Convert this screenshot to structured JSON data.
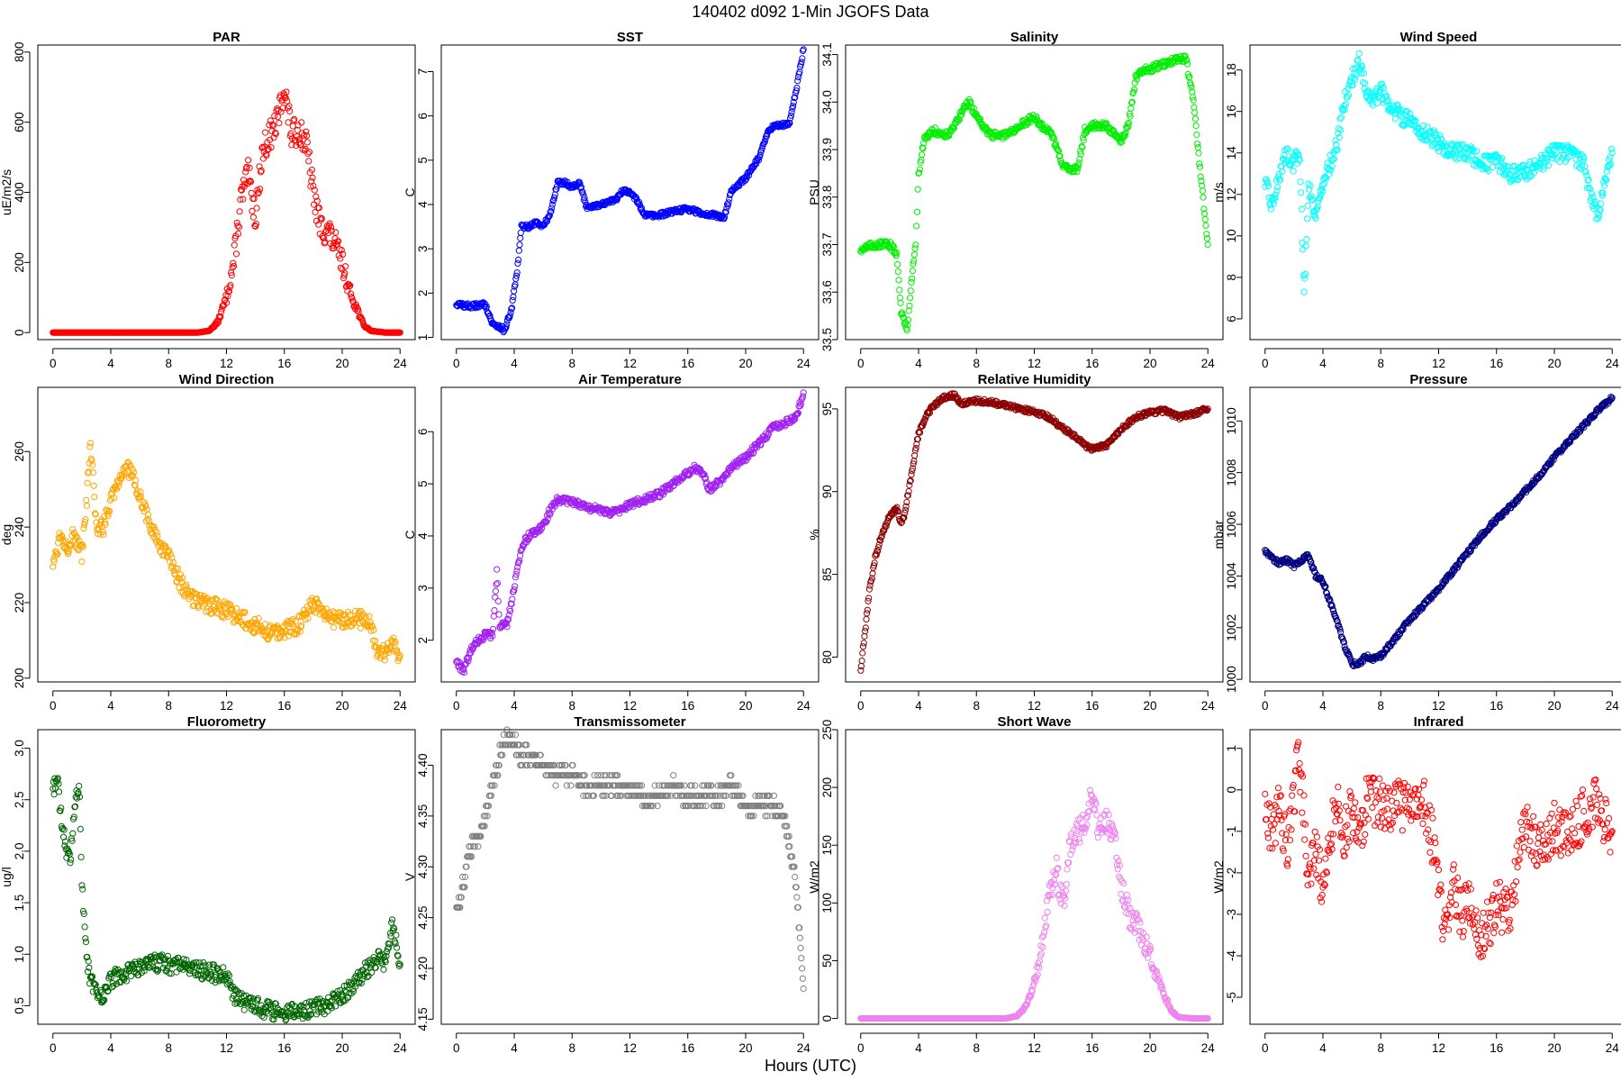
{
  "figure": {
    "title": "140402    d092    1-Min   JGOFS Data",
    "xlabel": "Hours (UTC)"
  },
  "chart_data": [
    {
      "type": "scatter",
      "title": "PAR",
      "ylabel": "uE/m2/s",
      "color": "#ff0000",
      "xlim": [
        0,
        24
      ],
      "ylim": [
        -20,
        820
      ],
      "xticks": [
        0,
        4,
        8,
        12,
        16,
        20,
        24
      ],
      "yticks": [
        0,
        200,
        400,
        600,
        800
      ],
      "x": [
        0,
        2,
        4,
        6,
        8,
        10,
        10.8,
        11.4,
        12,
        12.5,
        13,
        13.5,
        14,
        14.5,
        15,
        15.5,
        16,
        16.5,
        17,
        17.5,
        18,
        18.5,
        19,
        19.5,
        20,
        20.5,
        21,
        21.5,
        22,
        23,
        24
      ],
      "y": [
        0,
        0,
        0,
        0,
        0,
        0,
        5,
        30,
        100,
        200,
        380,
        450,
        330,
        520,
        560,
        600,
        700,
        560,
        580,
        540,
        400,
        300,
        290,
        250,
        200,
        120,
        70,
        20,
        5,
        0,
        0
      ]
    },
    {
      "type": "scatter",
      "title": "SST",
      "ylabel": "C",
      "color": "#0000ff",
      "xlim": [
        0,
        24
      ],
      "ylim": [
        0.95,
        7.6
      ],
      "xticks": [
        0,
        4,
        8,
        12,
        16,
        20,
        24
      ],
      "yticks": [
        1,
        2,
        3,
        4,
        5,
        6,
        7
      ],
      "x": [
        0,
        1,
        2,
        2.5,
        3,
        3.3,
        3.8,
        4.2,
        4.5,
        5,
        5.5,
        6,
        6.5,
        7,
        7.5,
        8,
        8.5,
        9,
        10,
        11,
        11.5,
        12,
        12.5,
        13,
        14,
        15,
        16,
        17,
        18,
        18.5,
        19,
        20,
        21,
        21.5,
        22,
        23,
        23.5,
        24
      ],
      "y": [
        1.75,
        1.7,
        1.75,
        1.3,
        1.25,
        1.15,
        1.6,
        2.5,
        3.5,
        3.5,
        3.6,
        3.5,
        3.8,
        4.5,
        4.5,
        4.4,
        4.5,
        3.95,
        4.0,
        4.1,
        4.3,
        4.3,
        4.1,
        3.75,
        3.75,
        3.85,
        3.9,
        3.8,
        3.75,
        3.7,
        4.3,
        4.6,
        5.1,
        5.6,
        5.8,
        5.8,
        6.6,
        7.5
      ]
    },
    {
      "type": "scatter",
      "title": "Salinity",
      "ylabel": "PSU",
      "color": "#00ee00",
      "xlim": [
        0,
        24
      ],
      "ylim": [
        33.5,
        34.12
      ],
      "xticks": [
        0,
        4,
        8,
        12,
        16,
        20,
        24
      ],
      "yticks": [
        33.5,
        33.6,
        33.7,
        33.8,
        33.9,
        34.0,
        34.1
      ],
      "x": [
        0,
        1,
        2,
        2.5,
        2.8,
        3.2,
        3.5,
        3.8,
        4.0,
        4.4,
        5,
        6,
        6.5,
        7,
        7.5,
        8,
        9,
        10,
        11,
        11.5,
        12,
        12.5,
        13,
        13.5,
        14,
        15,
        15.5,
        16,
        17,
        18,
        18.5,
        19,
        19.5,
        20,
        21,
        22,
        22.5,
        23,
        23.5,
        24
      ],
      "y": [
        33.69,
        33.7,
        33.7,
        33.68,
        33.56,
        33.52,
        33.62,
        33.7,
        33.85,
        33.92,
        33.94,
        33.93,
        33.95,
        33.98,
        34.0,
        33.97,
        33.93,
        33.93,
        33.95,
        33.96,
        33.97,
        33.95,
        33.94,
        33.91,
        33.86,
        33.86,
        33.94,
        33.95,
        33.95,
        33.92,
        33.95,
        34.05,
        34.07,
        34.07,
        34.08,
        34.09,
        34.09,
        34.0,
        33.85,
        33.7
      ]
    },
    {
      "type": "scatter",
      "title": "Wind Speed",
      "ylabel": "m/s",
      "color": "#00ffff",
      "xlim": [
        0,
        24
      ],
      "ylim": [
        5,
        19.2
      ],
      "xticks": [
        0,
        4,
        8,
        12,
        16,
        20,
        24
      ],
      "yticks": [
        6,
        8,
        10,
        12,
        14,
        16,
        18
      ],
      "x": [
        0,
        0.5,
        1,
        1.5,
        2,
        2.4,
        2.7,
        3,
        3.5,
        4,
        4.5,
        5,
        5.5,
        6,
        6.5,
        7,
        7.5,
        8,
        9,
        10,
        11,
        12,
        13,
        14,
        15,
        16,
        17,
        18,
        19,
        20,
        21,
        22,
        22.5,
        23,
        23.5,
        24
      ],
      "y": [
        12.5,
        11.5,
        13.0,
        14.0,
        13.5,
        14.0,
        7.0,
        12.5,
        11.0,
        12.5,
        13.5,
        14.5,
        16.5,
        17.5,
        18.5,
        17.0,
        16.5,
        17.0,
        16.0,
        15.5,
        15.0,
        14.5,
        14.0,
        14.0,
        13.5,
        13.5,
        13.0,
        13.0,
        13.5,
        14.0,
        14.0,
        13.5,
        12.0,
        11.0,
        12.5,
        14.0
      ]
    },
    {
      "type": "scatter",
      "title": "Wind Direction",
      "ylabel": "deg",
      "color": "#ffa500",
      "xlim": [
        0,
        24
      ],
      "ylim": [
        199,
        277
      ],
      "xticks": [
        0,
        4,
        8,
        12,
        16,
        20,
        24
      ],
      "yticks": [
        200,
        220,
        240,
        260
      ],
      "x": [
        0,
        0.5,
        1,
        1.5,
        2,
        2.3,
        2.6,
        3,
        3.5,
        4,
        4.5,
        5,
        5.5,
        6,
        6.5,
        7,
        7.5,
        8,
        9,
        10,
        11,
        12,
        13,
        14,
        15,
        16,
        17,
        18,
        19,
        20,
        21,
        22,
        22.5,
        23,
        23.5,
        24
      ],
      "y": [
        230,
        238,
        235,
        238,
        232,
        245,
        262,
        240,
        240,
        248,
        252,
        256,
        254,
        248,
        243,
        238,
        234,
        232,
        224,
        220,
        219,
        218,
        216,
        214,
        212,
        213,
        214,
        220,
        216,
        215,
        216,
        214,
        206,
        207,
        209,
        206
      ]
    },
    {
      "type": "scatter",
      "title": "Air Temperature",
      "ylabel": "C",
      "color": "#a020f0",
      "xlim": [
        0,
        24
      ],
      "ylim": [
        1.2,
        6.85
      ],
      "xticks": [
        0,
        4,
        8,
        12,
        16,
        20,
        24
      ],
      "yticks": [
        2,
        3,
        4,
        5,
        6
      ],
      "x": [
        0,
        0.5,
        1,
        1.5,
        2,
        2.5,
        2.8,
        3,
        3.5,
        4,
        4.5,
        5,
        5.5,
        6,
        6.5,
        7,
        8,
        9,
        10,
        10.5,
        11,
        12,
        13,
        14,
        15,
        16,
        16.5,
        17,
        17.5,
        18,
        18.5,
        19,
        20,
        21,
        22,
        23,
        23.5,
        24
      ],
      "y": [
        1.6,
        1.4,
        1.8,
        2.0,
        2.1,
        2.1,
        3.3,
        2.3,
        2.3,
        3.0,
        3.8,
        4.0,
        4.1,
        4.2,
        4.5,
        4.7,
        4.65,
        4.55,
        4.5,
        4.45,
        4.45,
        4.6,
        4.7,
        4.8,
        5.0,
        5.2,
        5.3,
        5.2,
        4.9,
        5.0,
        5.1,
        5.3,
        5.5,
        5.8,
        6.1,
        6.2,
        6.3,
        6.75
      ]
    },
    {
      "type": "scatter",
      "title": "Relative Humidity",
      "ylabel": "%",
      "color": "#8b0000",
      "xlim": [
        0,
        24
      ],
      "ylim": [
        78.5,
        96.3
      ],
      "xticks": [
        0,
        4,
        8,
        12,
        16,
        20,
        24
      ],
      "yticks": [
        80,
        85,
        90,
        95
      ],
      "x": [
        0,
        0.3,
        0.6,
        1,
        1.5,
        2,
        2.5,
        2.8,
        3,
        3.5,
        4,
        4.5,
        5,
        5.5,
        6,
        6.5,
        7,
        8,
        9,
        10,
        11,
        12,
        13,
        14,
        15,
        15.5,
        16,
        17,
        18,
        19,
        20,
        21,
        22,
        23,
        24
      ],
      "y": [
        79.2,
        81.5,
        84,
        86,
        87.5,
        88.5,
        89,
        88,
        88.5,
        91,
        93.5,
        94.5,
        95.2,
        95.5,
        95.8,
        95.8,
        95.3,
        95.5,
        95.4,
        95.2,
        95.0,
        94.8,
        94.5,
        93.8,
        93.2,
        92.8,
        92.6,
        92.8,
        93.8,
        94.5,
        94.8,
        94.9,
        94.5,
        94.7,
        95.0
      ]
    },
    {
      "type": "scatter",
      "title": "Pressure",
      "ylabel": "mbar",
      "color": "#000080",
      "xlim": [
        0,
        24
      ],
      "ylim": [
        999.9,
        1011.3
      ],
      "xticks": [
        0,
        4,
        8,
        12,
        16,
        20,
        24
      ],
      "yticks": [
        1000,
        1002,
        1004,
        1006,
        1008,
        1010
      ],
      "x": [
        0,
        0.5,
        1,
        1.5,
        2,
        2.5,
        3,
        3.5,
        4,
        4.5,
        5,
        5.5,
        6,
        6.5,
        7,
        7.5,
        8,
        9,
        10,
        11,
        12,
        13,
        14,
        15,
        16,
        17,
        18,
        19,
        20,
        21,
        22,
        23,
        24
      ],
      "y": [
        1005.0,
        1004.7,
        1004.5,
        1004.6,
        1004.4,
        1004.6,
        1004.8,
        1004.0,
        1003.8,
        1003.0,
        1002.2,
        1001.3,
        1000.6,
        1000.6,
        1000.9,
        1000.8,
        1000.9,
        1001.6,
        1002.3,
        1002.9,
        1003.5,
        1004.2,
        1004.9,
        1005.6,
        1006.2,
        1006.7,
        1007.3,
        1007.9,
        1008.6,
        1009.2,
        1009.8,
        1010.4,
        1010.9
      ]
    },
    {
      "type": "scatter",
      "title": "Fluorometry",
      "ylabel": "ug/l",
      "color": "#006400",
      "xlim": [
        0,
        24
      ],
      "ylim": [
        0.32,
        3.18
      ],
      "xticks": [
        0,
        4,
        8,
        12,
        16,
        20,
        24
      ],
      "yticks": [
        0.5,
        1.0,
        1.5,
        2.0,
        2.5,
        3.0
      ],
      "x": [
        0,
        0.3,
        0.6,
        0.9,
        1.2,
        1.5,
        1.8,
        2.0,
        2.2,
        2.5,
        3,
        3.5,
        4,
        5,
        6,
        7,
        8,
        9,
        10,
        11,
        12,
        12.5,
        13,
        14,
        15,
        16,
        17,
        18,
        19,
        20,
        21,
        22,
        22.5,
        23,
        23.5,
        24
      ],
      "y": [
        2.6,
        2.7,
        2.3,
        2.0,
        1.9,
        2.4,
        2.7,
        1.7,
        1.2,
        0.8,
        0.65,
        0.6,
        0.75,
        0.82,
        0.85,
        0.92,
        0.9,
        0.88,
        0.85,
        0.82,
        0.78,
        0.6,
        0.55,
        0.5,
        0.45,
        0.43,
        0.45,
        0.48,
        0.5,
        0.6,
        0.75,
        0.9,
        0.95,
        0.9,
        1.3,
        0.9
      ]
    },
    {
      "type": "scatter",
      "title": "Transmissometer",
      "ylabel": "V",
      "color": "#808080",
      "xlim": [
        0,
        24
      ],
      "ylim": [
        4.145,
        4.435
      ],
      "xticks": [
        0,
        4,
        8,
        12,
        16,
        20,
        24
      ],
      "yticks": [
        4.15,
        4.2,
        4.25,
        4.3,
        4.35,
        4.4
      ],
      "x": [
        0,
        0.3,
        0.7,
        1,
        1.5,
        2,
        2.5,
        3,
        3.5,
        4,
        4.5,
        5,
        6,
        7,
        8,
        9,
        10,
        11,
        12,
        13,
        14,
        15,
        16,
        17,
        18,
        19,
        20,
        21,
        22,
        22.5,
        23,
        23.5,
        23.8,
        24
      ],
      "y": [
        4.26,
        4.27,
        4.3,
        4.32,
        4.33,
        4.35,
        4.38,
        4.41,
        4.43,
        4.42,
        4.41,
        4.41,
        4.4,
        4.39,
        4.39,
        4.38,
        4.38,
        4.38,
        4.38,
        4.37,
        4.37,
        4.38,
        4.37,
        4.37,
        4.37,
        4.38,
        4.36,
        4.36,
        4.36,
        4.35,
        4.33,
        4.28,
        4.22,
        4.18
      ]
    },
    {
      "type": "scatter",
      "title": "Short Wave",
      "ylabel": "W/m2",
      "color": "#ee82ee",
      "xlim": [
        0,
        24
      ],
      "ylim": [
        -5,
        250
      ],
      "xticks": [
        0,
        4,
        8,
        12,
        16,
        20,
        24
      ],
      "yticks": [
        0,
        50,
        100,
        150,
        200,
        250
      ],
      "x": [
        0,
        2,
        4,
        6,
        8,
        10,
        10.8,
        11.4,
        12,
        12.5,
        13,
        13.5,
        14,
        14.5,
        15,
        15.5,
        16,
        16.5,
        17,
        17.5,
        18,
        18.5,
        19,
        19.5,
        20,
        20.5,
        21,
        21.5,
        22,
        23,
        24
      ],
      "y": [
        0,
        0,
        0,
        0,
        0,
        0,
        2,
        10,
        30,
        60,
        110,
        130,
        100,
        150,
        160,
        170,
        200,
        160,
        170,
        155,
        120,
        90,
        85,
        70,
        55,
        35,
        20,
        6,
        1,
        0,
        0
      ]
    },
    {
      "type": "scatter",
      "title": "Infrared",
      "ylabel": "W/m2",
      "color": "#ff0000",
      "xlim": [
        0,
        24
      ],
      "ylim": [
        -5.65,
        1.45
      ],
      "xticks": [
        0,
        4,
        8,
        12,
        16,
        20,
        24
      ],
      "yticks": [
        -5,
        -4,
        -3,
        -2,
        -1,
        0,
        1
      ],
      "x": [
        0,
        0.5,
        1,
        1.5,
        2,
        2.3,
        2.6,
        3,
        3.5,
        4,
        4.5,
        5,
        5.5,
        6,
        6.5,
        7,
        8,
        9,
        10,
        11,
        11.5,
        12,
        12.5,
        13,
        13.5,
        14,
        15,
        16,
        17,
        17.5,
        18,
        19,
        20,
        21,
        22,
        23,
        23.5,
        24
      ],
      "y": [
        -0.3,
        -1.2,
        -0.3,
        -1.5,
        -0.3,
        0.8,
        -0.3,
        -2.0,
        -1.5,
        -2.5,
        -1.0,
        -0.3,
        -1.2,
        -0.3,
        -1.5,
        -0.3,
        -0.3,
        -0.4,
        -0.3,
        -0.3,
        -1.0,
        -2.5,
        -3.5,
        -2.0,
        -3.0,
        -2.8,
        -3.5,
        -2.8,
        -3.0,
        -1.5,
        -0.8,
        -1.5,
        -0.8,
        -1.2,
        -0.6,
        -0.3,
        -0.8,
        -1.0
      ]
    }
  ]
}
